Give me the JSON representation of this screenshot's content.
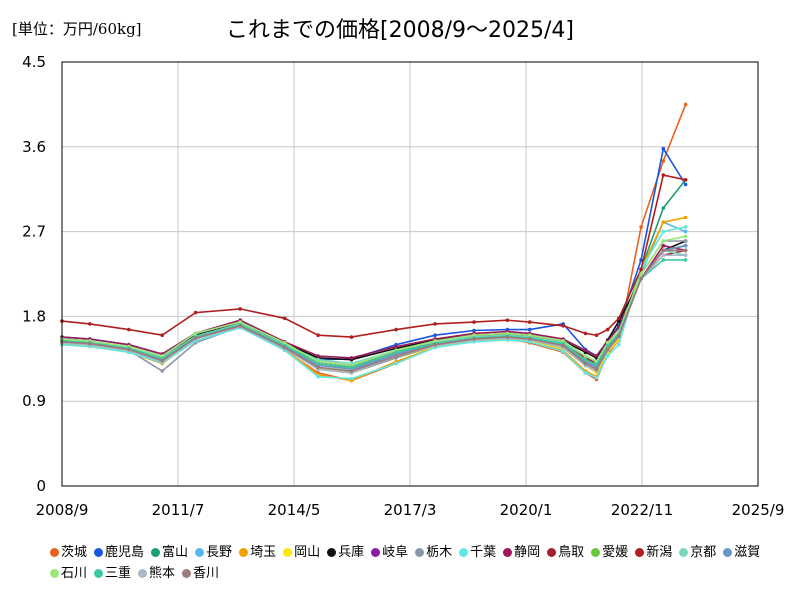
{
  "chart_data": {
    "type": "line",
    "title": "これまでの価格[2008/9～2025/4]",
    "unit_label": "[単位：万円/60kg]",
    "xlabel": "",
    "ylabel": "",
    "x_tick_labels": [
      "2008/9",
      "2011/7",
      "2014/5",
      "2017/3",
      "2020/1",
      "2022/11",
      "2025/9"
    ],
    "y_tick_labels": [
      "0",
      "0.9",
      "1.8",
      "2.7",
      "3.6",
      "4.5"
    ],
    "ylim": [
      0,
      4.5
    ],
    "grid": true,
    "legend_position": "bottom",
    "series": [
      {
        "name": "茨城",
        "color": "#e8641e",
        "values": [
          1.52,
          1.5,
          1.44,
          1.33,
          1.56,
          1.69,
          1.44,
          1.2,
          1.12,
          1.3,
          1.48,
          1.55,
          1.56,
          1.52,
          1.42,
          1.2,
          1.13,
          1.4,
          1.55,
          2.75,
          3.45,
          4.05
        ]
      },
      {
        "name": "鹿児島",
        "color": "#1a56e0",
        "values": [
          1.58,
          1.56,
          1.5,
          1.4,
          1.62,
          1.76,
          1.52,
          1.34,
          1.35,
          1.5,
          1.6,
          1.65,
          1.66,
          1.66,
          1.72,
          1.45,
          1.38,
          1.54,
          1.7,
          2.4,
          3.58,
          3.2
        ]
      },
      {
        "name": "富山",
        "color": "#1f9e6e",
        "values": [
          1.55,
          1.53,
          1.46,
          1.35,
          1.58,
          1.72,
          1.5,
          1.3,
          1.26,
          1.42,
          1.52,
          1.58,
          1.6,
          1.58,
          1.52,
          1.35,
          1.3,
          1.5,
          1.62,
          2.3,
          2.95,
          3.25
        ]
      },
      {
        "name": "長野",
        "color": "#55b8f0",
        "values": [
          1.53,
          1.51,
          1.45,
          1.34,
          1.57,
          1.7,
          1.48,
          1.25,
          1.22,
          1.4,
          1.5,
          1.56,
          1.58,
          1.56,
          1.5,
          1.3,
          1.26,
          1.46,
          1.6,
          2.25,
          2.8,
          2.7
        ]
      },
      {
        "name": "埼玉",
        "color": "#f0a000",
        "values": [
          1.5,
          1.48,
          1.42,
          1.3,
          1.55,
          1.68,
          1.45,
          1.18,
          1.12,
          1.32,
          1.47,
          1.54,
          1.55,
          1.53,
          1.44,
          1.22,
          1.16,
          1.42,
          1.55,
          2.3,
          2.8,
          2.85
        ]
      },
      {
        "name": "岡山",
        "color": "#ffe800",
        "values": [
          1.51,
          1.49,
          1.43,
          1.32,
          1.55,
          1.69,
          1.47,
          1.26,
          1.2,
          1.36,
          1.48,
          1.54,
          1.56,
          1.54,
          1.46,
          1.28,
          1.2,
          1.42,
          1.56,
          2.3,
          2.7,
          2.75
        ]
      },
      {
        "name": "兵庫",
        "color": "#111111",
        "values": [
          1.56,
          1.54,
          1.47,
          1.36,
          1.6,
          1.73,
          1.52,
          1.36,
          1.34,
          1.46,
          1.55,
          1.6,
          1.62,
          1.6,
          1.54,
          1.42,
          1.36,
          1.55,
          1.75,
          2.2,
          2.5,
          2.6
        ]
      },
      {
        "name": "岐阜",
        "color": "#8a1aa8",
        "values": [
          1.54,
          1.52,
          1.46,
          1.34,
          1.58,
          1.71,
          1.49,
          1.3,
          1.26,
          1.42,
          1.51,
          1.57,
          1.59,
          1.57,
          1.51,
          1.36,
          1.3,
          1.5,
          1.62,
          2.2,
          2.5,
          2.55
        ]
      },
      {
        "name": "栃木",
        "color": "#8c96a8",
        "values": [
          1.52,
          1.5,
          1.44,
          1.22,
          1.52,
          1.69,
          1.46,
          1.24,
          1.2,
          1.36,
          1.49,
          1.55,
          1.57,
          1.55,
          1.47,
          1.28,
          1.22,
          1.44,
          1.58,
          2.25,
          2.6,
          2.6
        ]
      },
      {
        "name": "千葉",
        "color": "#5ee8e8",
        "values": [
          1.5,
          1.48,
          1.42,
          1.31,
          1.54,
          1.68,
          1.44,
          1.16,
          1.14,
          1.3,
          1.47,
          1.53,
          1.55,
          1.53,
          1.43,
          1.2,
          1.15,
          1.38,
          1.5,
          2.3,
          2.7,
          2.75
        ]
      },
      {
        "name": "静岡",
        "color": "#9c1a5a",
        "values": [
          1.58,
          1.56,
          1.5,
          1.4,
          1.62,
          1.76,
          1.53,
          1.38,
          1.36,
          1.48,
          1.56,
          1.62,
          1.64,
          1.62,
          1.56,
          1.44,
          1.38,
          1.54,
          1.68,
          2.2,
          2.55,
          2.5
        ]
      },
      {
        "name": "鳥取",
        "color": "#a61e2e",
        "values": [
          1.55,
          1.53,
          1.47,
          1.36,
          1.59,
          1.72,
          1.5,
          1.32,
          1.28,
          1.44,
          1.53,
          1.58,
          1.6,
          1.58,
          1.52,
          1.36,
          1.3,
          1.5,
          1.62,
          2.2,
          2.45,
          2.5
        ]
      },
      {
        "name": "愛媛",
        "color": "#6ac83c",
        "values": [
          1.54,
          1.52,
          1.46,
          1.35,
          1.58,
          1.71,
          1.5,
          1.3,
          1.25,
          1.42,
          1.51,
          1.57,
          1.59,
          1.57,
          1.51,
          1.34,
          1.28,
          1.48,
          1.6,
          2.2,
          2.5,
          2.55
        ]
      },
      {
        "name": "新潟",
        "color": "#b01e1e",
        "values": [
          1.75,
          1.72,
          1.66,
          1.6,
          1.84,
          1.88,
          1.78,
          1.6,
          1.58,
          1.66,
          1.72,
          1.74,
          1.76,
          1.74,
          1.7,
          1.62,
          1.6,
          1.66,
          1.78,
          2.3,
          3.3,
          3.25
        ]
      },
      {
        "name": "京都",
        "color": "#7ad8c0",
        "values": [
          1.55,
          1.53,
          1.47,
          1.36,
          1.59,
          1.72,
          1.5,
          1.34,
          1.3,
          1.44,
          1.53,
          1.58,
          1.6,
          1.58,
          1.52,
          1.38,
          1.32,
          1.5,
          1.64,
          2.2,
          2.5,
          2.45
        ]
      },
      {
        "name": "滋賀",
        "color": "#6a96c8",
        "values": [
          1.53,
          1.51,
          1.45,
          1.34,
          1.57,
          1.7,
          1.48,
          1.28,
          1.24,
          1.4,
          1.5,
          1.56,
          1.58,
          1.56,
          1.5,
          1.32,
          1.27,
          1.47,
          1.6,
          2.2,
          2.5,
          2.55
        ]
      },
      {
        "name": "石川",
        "color": "#98e878",
        "values": [
          1.56,
          1.54,
          1.48,
          1.38,
          1.62,
          1.74,
          1.52,
          1.32,
          1.28,
          1.44,
          1.54,
          1.6,
          1.62,
          1.6,
          1.54,
          1.38,
          1.32,
          1.52,
          1.64,
          2.25,
          2.6,
          2.65
        ]
      },
      {
        "name": "三重",
        "color": "#3cc8a0",
        "values": [
          1.54,
          1.52,
          1.46,
          1.35,
          1.58,
          1.71,
          1.49,
          1.3,
          1.26,
          1.42,
          1.51,
          1.57,
          1.59,
          1.57,
          1.51,
          1.34,
          1.29,
          1.49,
          1.61,
          2.2,
          2.4,
          2.4
        ]
      },
      {
        "name": "熊本",
        "color": "#a8b8c8",
        "values": [
          1.52,
          1.5,
          1.44,
          1.32,
          1.56,
          1.69,
          1.46,
          1.24,
          1.2,
          1.38,
          1.49,
          1.55,
          1.57,
          1.55,
          1.47,
          1.28,
          1.22,
          1.44,
          1.58,
          2.2,
          2.45,
          2.45
        ]
      },
      {
        "name": "香川",
        "color": "#9a7a7a",
        "values": [
          1.53,
          1.51,
          1.45,
          1.33,
          1.57,
          1.7,
          1.47,
          1.26,
          1.22,
          1.38,
          1.5,
          1.56,
          1.58,
          1.56,
          1.49,
          1.3,
          1.24,
          1.45,
          1.59,
          2.2,
          2.5,
          2.5
        ]
      }
    ]
  }
}
